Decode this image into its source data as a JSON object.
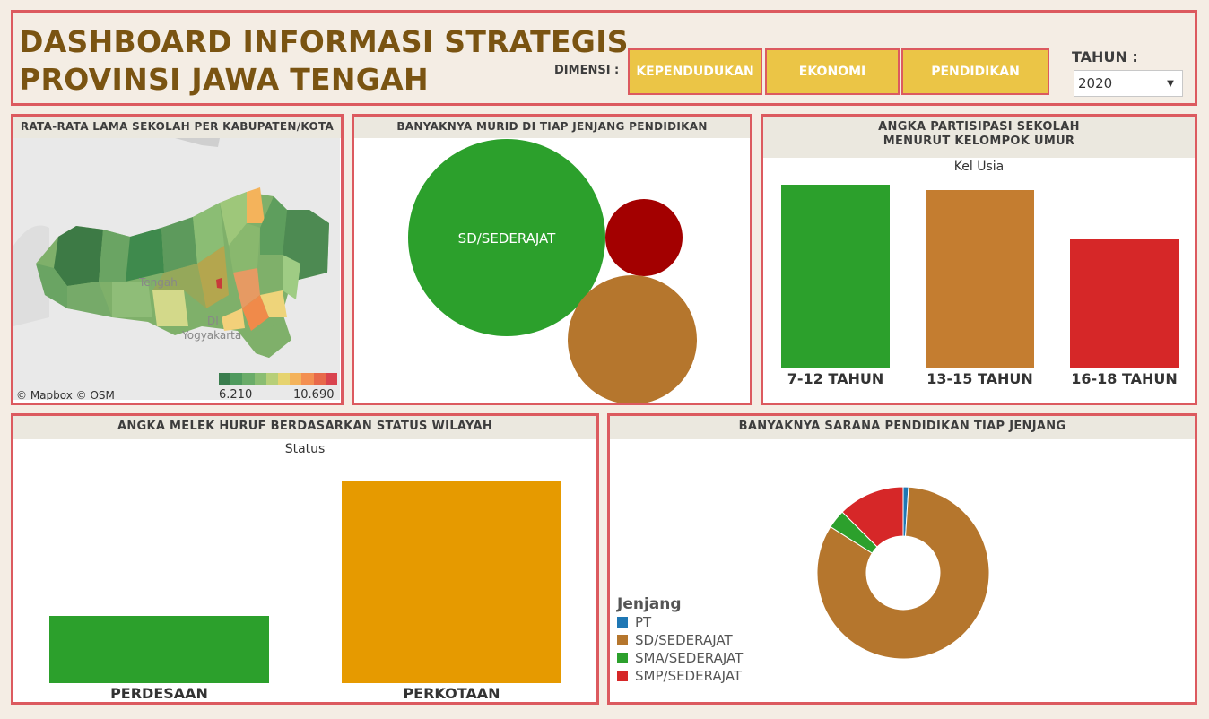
{
  "header": {
    "title_line1": "DASHBOARD INFORMASI STRATEGIS",
    "title_line2": "PROVINSI JAWA TENGAH",
    "dimensi_label": "DIMENSI :",
    "buttons": [
      "KEPENDUDUKAN",
      "EKONOMI",
      "PENDIDIKAN"
    ],
    "tahun_label": "TAHUN :",
    "tahun_value": "2020"
  },
  "map_panel": {
    "title": "RATA-RATA LAMA SEKOLAH PER KABUPATEN/KOTA",
    "attribution": "© Mapbox © OSM",
    "legend_min": "6.210",
    "legend_max": "10.690",
    "place_labels": [
      "Tengah",
      "DI",
      "Yogyakarta"
    ],
    "legend_colors": [
      "#3a7d4e",
      "#4f9a5e",
      "#6aac69",
      "#8abd72",
      "#b7cf78",
      "#e6d36f",
      "#f4b35b",
      "#f38f51",
      "#e8694a",
      "#d9434e"
    ]
  },
  "bubble_panel": {
    "title": "BANYAKNYA MURID DI TIAP JENJANG PENDIDIKAN",
    "big_label": "SD/SEDERAJAT"
  },
  "aps_panel": {
    "title_line1": "ANGKA PARTISIPASI SEKOLAH",
    "title_line2": "MENURUT KELOMPOK UMUR",
    "subtitle": "Kel Usia"
  },
  "melek_panel": {
    "title": "ANGKA MELEK HURUF BERDASARKAN STATUS WILAYAH",
    "subtitle": "Status"
  },
  "sarana_panel": {
    "title": "BANYAKNYA SARANA PENDIDIKAN TIAP JENJANG",
    "legend_title": "Jenjang"
  },
  "chart_data": [
    {
      "type": "bar",
      "categories": [
        "7-12 TAHUN",
        "13-15 TAHUN",
        "16-18 TAHUN"
      ],
      "values": [
        100,
        97,
        70
      ],
      "colors": [
        "#2ca02c",
        "#c47d30",
        "#d62728"
      ],
      "xlabel": "Kel Usia"
    },
    {
      "type": "bar",
      "categories": [
        "PERDESAAN",
        "PERKOTAAN"
      ],
      "values": [
        33,
        100
      ],
      "colors": [
        "#2ca02c",
        "#e69a00"
      ],
      "xlabel": "Status"
    },
    {
      "type": "pie",
      "categories": [
        "PT",
        "SD/SEDERAJAT",
        "SMA/SEDERAJAT",
        "SMP/SEDERAJAT"
      ],
      "values": [
        1,
        83,
        3.5,
        12.5
      ],
      "colors": [
        "#1f77b4",
        "#b5762d",
        "#2ca02c",
        "#d62728"
      ],
      "legend": "left"
    }
  ]
}
